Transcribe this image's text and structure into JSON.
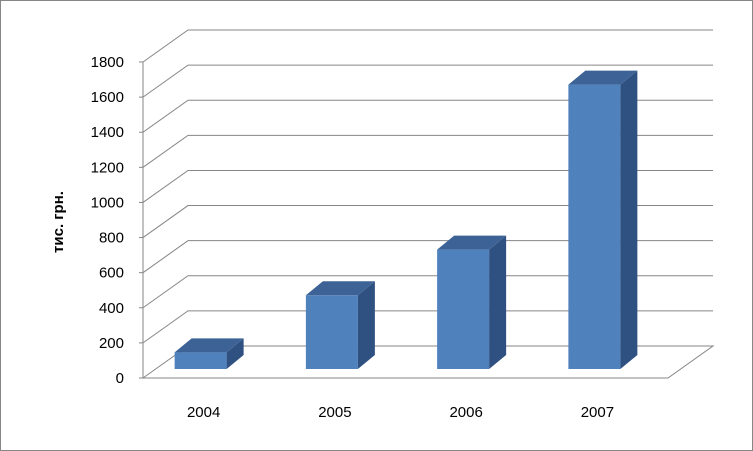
{
  "chart_data": {
    "type": "bar",
    "title": "",
    "xlabel": "",
    "ylabel": "тис. грн.",
    "categories": [
      "2004",
      "2005",
      "2006",
      "2007"
    ],
    "values": [
      95,
      420,
      680,
      1620
    ],
    "ylim": [
      0,
      1800
    ],
    "yticks": [
      0,
      200,
      400,
      600,
      800,
      1000,
      1200,
      1400,
      1600,
      1800
    ],
    "grid": true,
    "legend": "none",
    "style": "3d-column",
    "colors": {
      "bar_front": "#4f81bd",
      "bar_side": "#2f5181",
      "bar_top": "#3d6396",
      "grid": "#868686",
      "frame": "#868686"
    }
  }
}
